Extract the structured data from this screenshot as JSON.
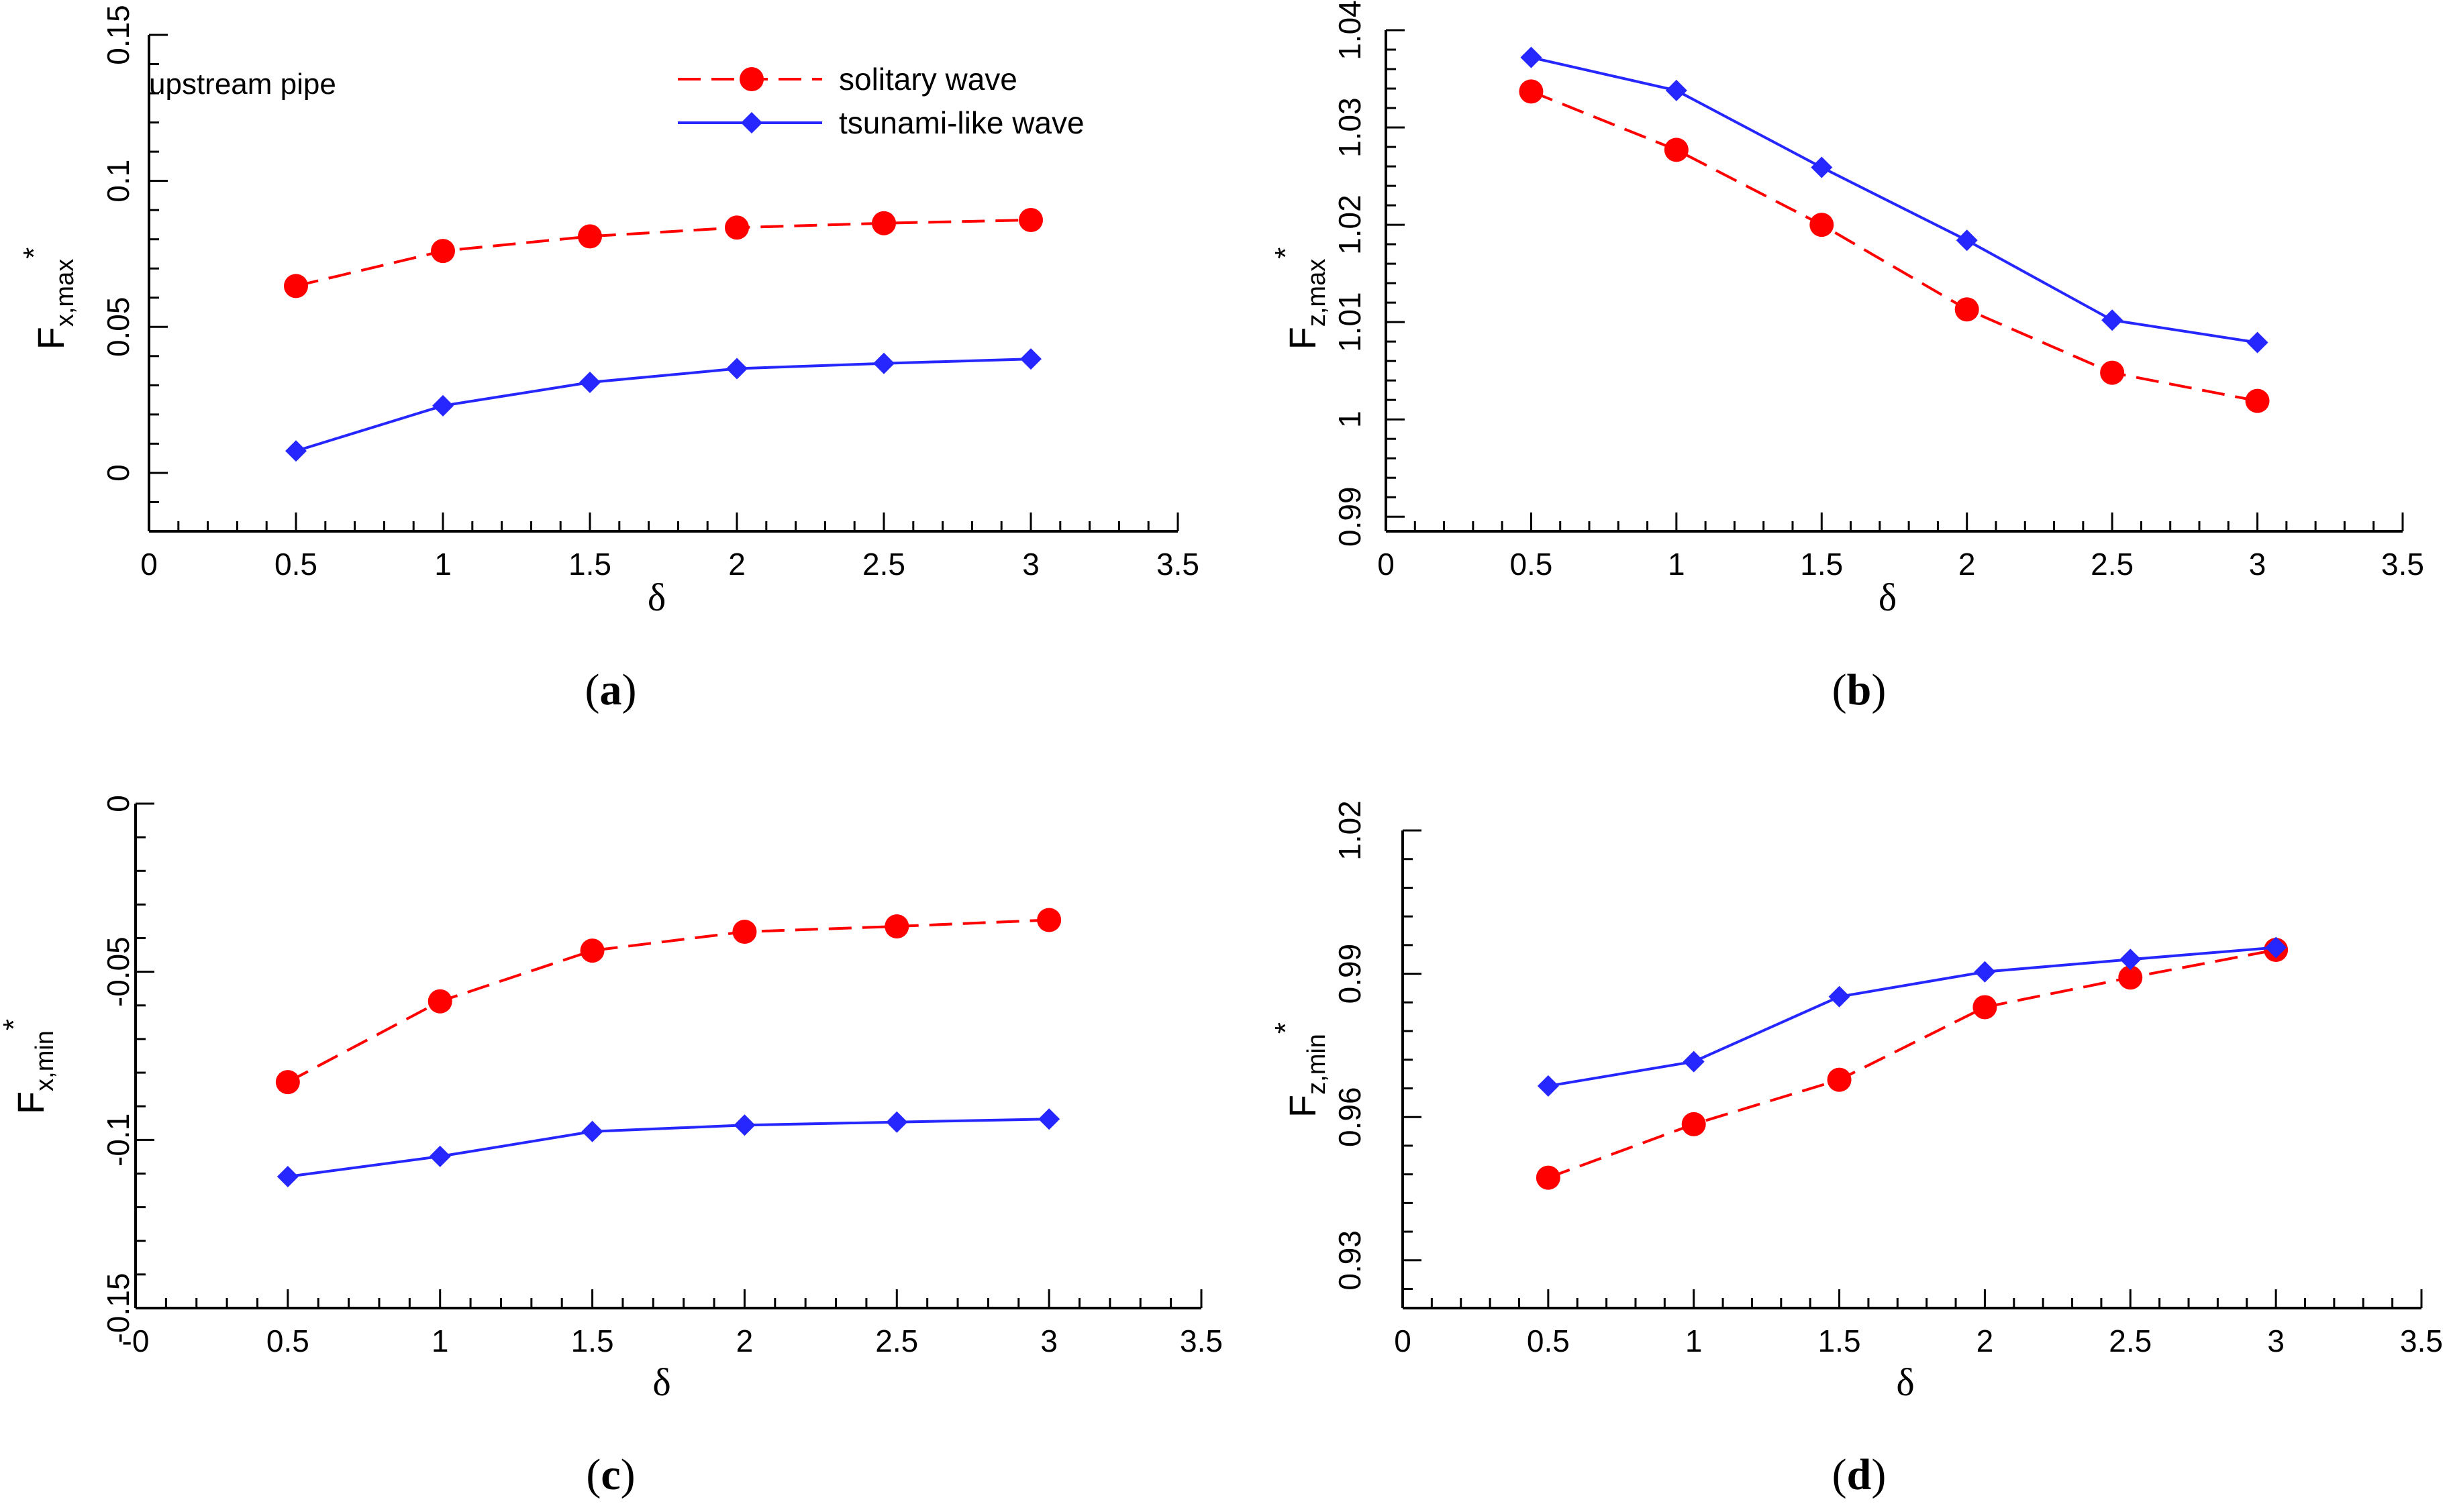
{
  "legend": {
    "annotation": "upstream pipe",
    "entries": [
      {
        "label": "solitary wave",
        "color": "#ff0000",
        "marker": "circle",
        "dash": true
      },
      {
        "label": "tsunami-like wave",
        "color": "#2626ff",
        "marker": "diamond",
        "dash": false
      }
    ]
  },
  "chart_data": [
    {
      "panel": "(a)",
      "panel_letter": "a",
      "type": "line",
      "xlabel": "δ",
      "ylabel": {
        "base": "F",
        "sub": "x,max",
        "sup": "*"
      },
      "xlim": [
        0,
        3.5
      ],
      "ylim": [
        -0.02,
        0.15
      ],
      "xticks": [
        "0",
        "0.5",
        "1",
        "1.5",
        "2",
        "2.5",
        "3",
        "3.5"
      ],
      "yticks": [
        "0",
        "0.05",
        "0.1",
        "0.15"
      ],
      "x": [
        0.5,
        1,
        1.5,
        2,
        2.5,
        3
      ],
      "series": [
        {
          "name": "solitary wave",
          "values": [
            0.064,
            0.076,
            0.081,
            0.084,
            0.0855,
            0.0866
          ]
        },
        {
          "name": "tsunami-like wave",
          "values": [
            0.0075,
            0.023,
            0.031,
            0.0357,
            0.0375,
            0.039
          ]
        }
      ]
    },
    {
      "panel": "(b)",
      "panel_letter": "b",
      "type": "line",
      "xlabel": "δ",
      "ylabel": {
        "base": "F",
        "sub": "z,max",
        "sup": "*"
      },
      "xlim": [
        0,
        3.5
      ],
      "ylim": [
        0.9885,
        1.04
      ],
      "xticks": [
        "0",
        "0.5",
        "1",
        "1.5",
        "2",
        "2.5",
        "3",
        "3.5"
      ],
      "yticks": [
        "0.99",
        "1",
        "1.01",
        "1.02",
        "1.03",
        "1.04"
      ],
      "x": [
        0.5,
        1,
        1.5,
        2,
        2.5,
        3
      ],
      "series": [
        {
          "name": "solitary wave",
          "values": [
            1.0337,
            1.0277,
            1.02,
            1.0113,
            1.0048,
            1.0019
          ]
        },
        {
          "name": "tsunami-like wave",
          "values": [
            1.0372,
            1.0338,
            1.0259,
            1.0184,
            1.0102,
            1.0079
          ]
        }
      ]
    },
    {
      "panel": "(c)",
      "panel_letter": "c",
      "type": "line",
      "xlabel": "δ",
      "ylabel": {
        "base": "F",
        "sub": "x,min",
        "sup": "*"
      },
      "xlim": [
        0,
        3.5
      ],
      "ylim": [
        -0.15,
        0
      ],
      "xticks": [
        "-0",
        "0.5",
        "1",
        "1.5",
        "2",
        "2.5",
        "3",
        "3.5"
      ],
      "yticks": [
        "-0.15",
        "-0.1",
        "-0.05",
        "0"
      ],
      "x": [
        0.5,
        1,
        1.5,
        2,
        2.5,
        3
      ],
      "series": [
        {
          "name": "solitary wave",
          "values": [
            -0.0828,
            -0.0588,
            -0.0437,
            -0.0381,
            -0.0365,
            -0.0346
          ]
        },
        {
          "name": "tsunami-like wave",
          "values": [
            -0.1109,
            -0.1049,
            -0.0975,
            -0.0956,
            -0.0947,
            -0.0938
          ]
        }
      ]
    },
    {
      "panel": "(d)",
      "panel_letter": "d",
      "type": "line",
      "xlabel": "δ",
      "ylabel": {
        "base": "F",
        "sub": "z,min",
        "sup": "*"
      },
      "xlim": [
        0,
        3.5
      ],
      "ylim": [
        0.92,
        1.02
      ],
      "xticks": [
        "0",
        "0.5",
        "1",
        "1.5",
        "2",
        "2.5",
        "3",
        "3.5"
      ],
      "yticks": [
        "0.93",
        "0.96",
        "0.99",
        "1.02"
      ],
      "x": [
        0.5,
        1,
        1.5,
        2,
        2.5,
        3
      ],
      "series": [
        {
          "name": "solitary wave",
          "values": [
            0.9473,
            0.9585,
            0.9678,
            0.983,
            0.9892,
            0.995
          ]
        },
        {
          "name": "tsunami-like wave",
          "values": [
            0.9665,
            0.9716,
            0.9852,
            0.9904,
            0.993,
            0.9955
          ]
        }
      ]
    }
  ]
}
